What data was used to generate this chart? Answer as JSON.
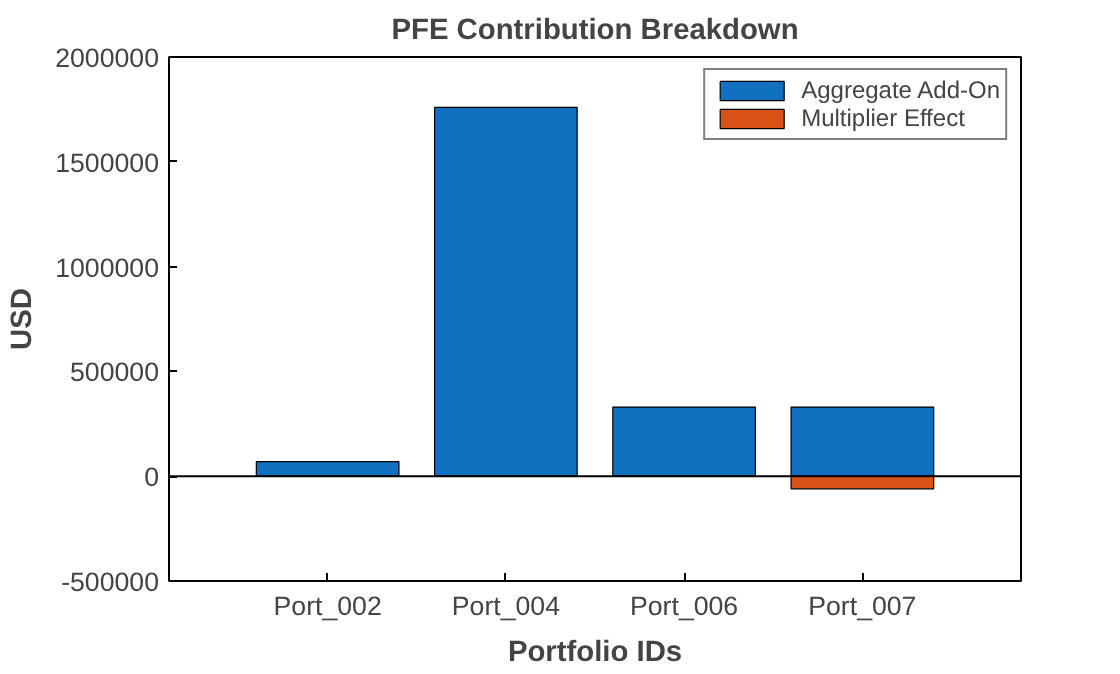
{
  "chart_data": {
    "type": "bar",
    "title": "PFE Contribution Breakdown",
    "xlabel": "Portfolio IDs",
    "ylabel": "USD",
    "categories": [
      "Port_002",
      "Port_004",
      "Port_006",
      "Port_007"
    ],
    "series": [
      {
        "name": "Aggregate Add-On",
        "color": "#1170c0",
        "values": [
          70000,
          1760000,
          330000,
          330000
        ]
      },
      {
        "name": "Multiplier Effect",
        "color": "#d95319",
        "values": [
          null,
          null,
          null,
          -60000
        ]
      }
    ],
    "stacked": true,
    "ylim": [
      -500000,
      2000000
    ],
    "yticks": [
      -500000,
      0,
      500000,
      1000000,
      1500000,
      2000000
    ],
    "ref_lines": [
      {
        "axis": "y",
        "value": 0,
        "color": "#000000"
      }
    ],
    "legend": "top right"
  }
}
